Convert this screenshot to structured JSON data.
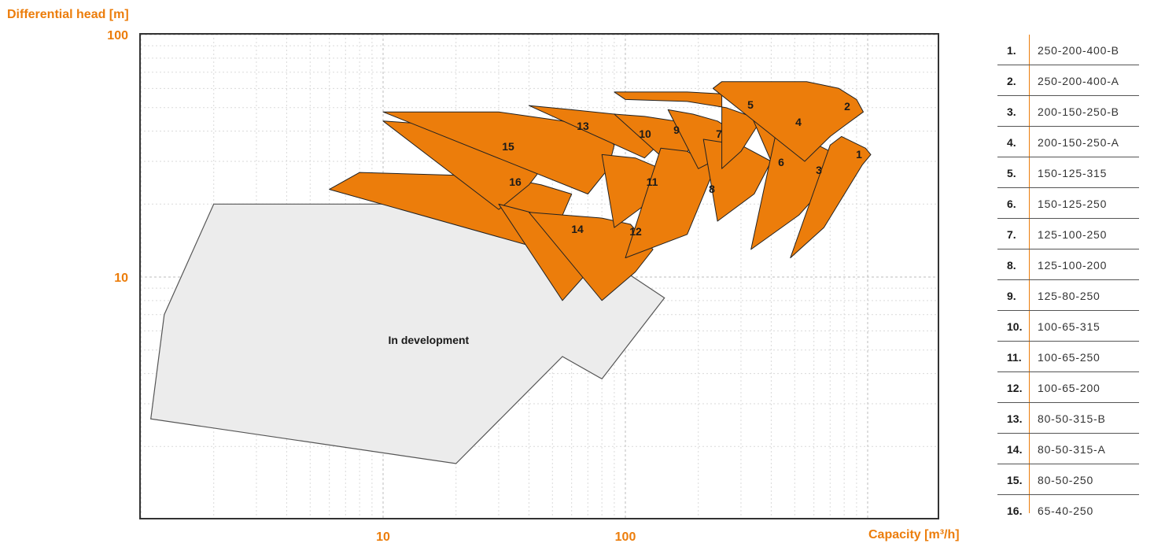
{
  "colors": {
    "accent": "#ec7d0b",
    "dev_fill": "#ececec"
  },
  "chart_data": {
    "type": "area",
    "xlabel": "Capacity [m³/h]",
    "ylabel": "Differential head [m]",
    "xscale": "log",
    "yscale": "log",
    "xlim": [
      1,
      1200
    ],
    "ylim": [
      1,
      100
    ],
    "xticks": [
      "10",
      "100"
    ],
    "yticks": [
      "100",
      "10"
    ],
    "grid": true,
    "development_region": {
      "label": "In development",
      "outline": [
        [
          1.25,
          7
        ],
        [
          2,
          20
        ],
        [
          30,
          20
        ],
        [
          55,
          10.5
        ],
        [
          100,
          10.5
        ],
        [
          145,
          8.2
        ],
        [
          80,
          3.8
        ],
        [
          55,
          4.7
        ],
        [
          20,
          1.7
        ],
        [
          1.1,
          2.6
        ]
      ]
    },
    "series": [
      {
        "name": "250-200-400-B",
        "label": "1",
        "outline": [
          [
            480,
            12
          ],
          [
            660,
            16
          ],
          [
            950,
            29
          ],
          [
            1030,
            32
          ],
          [
            980,
            34
          ],
          [
            780,
            38
          ],
          [
            700,
            35
          ]
        ]
      },
      {
        "name": "250-200-400-A",
        "label": "2",
        "outline": [
          [
            550,
            30
          ],
          [
            700,
            38
          ],
          [
            800,
            42
          ],
          [
            960,
            48
          ],
          [
            900,
            54
          ],
          [
            760,
            60
          ],
          [
            650,
            62
          ],
          [
            560,
            64
          ],
          [
            250,
            64
          ],
          [
            230,
            60
          ]
        ]
      },
      {
        "name": "200-150-250-B",
        "label": "3",
        "outline": [
          [
            330,
            13
          ],
          [
            520,
            18
          ],
          [
            700,
            25
          ],
          [
            780,
            30
          ],
          [
            700,
            33
          ],
          [
            590,
            36
          ],
          [
            500,
            38
          ],
          [
            420,
            40
          ]
        ]
      },
      {
        "name": "200-150-250-A",
        "label": "4",
        "outline": [
          [
            400,
            30
          ],
          [
            500,
            35
          ],
          [
            660,
            40
          ],
          [
            560,
            44
          ],
          [
            450,
            47
          ],
          [
            380,
            49
          ],
          [
            320,
            50
          ]
        ]
      },
      {
        "name": "150-125-315",
        "label": "5",
        "outline": [
          [
            250,
            28
          ],
          [
            300,
            33
          ],
          [
            350,
            42
          ],
          [
            330,
            46
          ],
          [
            260,
            50
          ],
          [
            180,
            53
          ],
          [
            100,
            54
          ],
          [
            90,
            58
          ],
          [
            180,
            58
          ],
          [
            250,
            57
          ]
        ]
      },
      {
        "name": "150-125-250",
        "label": "6",
        "outline": [
          [
            240,
            17
          ],
          [
            340,
            22
          ],
          [
            400,
            30
          ],
          [
            300,
            35
          ],
          [
            210,
            37
          ]
        ]
      },
      {
        "name": "125-100-250",
        "label": "7",
        "outline": [
          [
            200,
            28
          ],
          [
            260,
            32
          ],
          [
            280,
            40
          ],
          [
            240,
            44
          ],
          [
            190,
            47
          ],
          [
            150,
            49
          ]
        ]
      },
      {
        "name": "125-100-200",
        "label": "8",
        "outline": [
          [
            100,
            12
          ],
          [
            180,
            15
          ],
          [
            240,
            30
          ],
          [
            200,
            31
          ],
          [
            180,
            33
          ],
          [
            140,
            34
          ]
        ]
      },
      {
        "name": "125-80-250",
        "label": "9",
        "outline": [
          [
            160,
            28
          ],
          [
            180,
            32
          ],
          [
            190,
            40
          ],
          [
            160,
            44
          ],
          [
            120,
            46
          ],
          [
            90,
            47
          ]
        ]
      },
      {
        "name": "100-65-315",
        "label": "10",
        "outline": [
          [
            120,
            31
          ],
          [
            140,
            36
          ],
          [
            145,
            40
          ],
          [
            120,
            44
          ],
          [
            90,
            47
          ],
          [
            60,
            49
          ],
          [
            40,
            51
          ]
        ]
      },
      {
        "name": "100-65-250",
        "label": "11",
        "outline": [
          [
            90,
            16
          ],
          [
            130,
            21
          ],
          [
            140,
            28
          ],
          [
            110,
            31
          ],
          [
            80,
            32
          ]
        ]
      },
      {
        "name": "100-65-200",
        "label": "12",
        "outline": [
          [
            80,
            8
          ],
          [
            110,
            10.5
          ],
          [
            130,
            13
          ],
          [
            105,
            16.5
          ],
          [
            80,
            17.5
          ],
          [
            40,
            18.5
          ]
        ]
      },
      {
        "name": "80-50-315-B",
        "label": "13",
        "outline": [
          [
            70,
            22
          ],
          [
            85,
            28
          ],
          [
            90,
            35
          ],
          [
            80,
            40
          ],
          [
            55,
            44
          ],
          [
            30,
            48
          ],
          [
            10,
            48
          ]
        ]
      },
      {
        "name": "80-50-315-A",
        "label": "14",
        "outline": [
          [
            55,
            8
          ],
          [
            70,
            10.5
          ],
          [
            80,
            13.5
          ],
          [
            65,
            17
          ],
          [
            45,
            18
          ],
          [
            30,
            20
          ]
        ]
      },
      {
        "name": "80-50-250",
        "label": "15",
        "outline": [
          [
            30,
            19
          ],
          [
            40,
            24
          ],
          [
            50,
            32
          ],
          [
            38,
            37
          ],
          [
            20,
            42
          ],
          [
            10,
            44
          ]
        ]
      },
      {
        "name": "65-40-250",
        "label": "16",
        "outline": [
          [
            40,
            13.5
          ],
          [
            55,
            18
          ],
          [
            60,
            22
          ],
          [
            45,
            24
          ],
          [
            30,
            26
          ],
          [
            8,
            27
          ],
          [
            6,
            23
          ]
        ]
      }
    ]
  },
  "legend": {
    "items": [
      {
        "num": "1.",
        "name": "250-200-400-B"
      },
      {
        "num": "2.",
        "name": "250-200-400-A"
      },
      {
        "num": "3.",
        "name": "200-150-250-B"
      },
      {
        "num": "4.",
        "name": "200-150-250-A"
      },
      {
        "num": "5.",
        "name": "150-125-315"
      },
      {
        "num": "6.",
        "name": "150-125-250"
      },
      {
        "num": "7.",
        "name": "125-100-250"
      },
      {
        "num": "8.",
        "name": "125-100-200"
      },
      {
        "num": "9.",
        "name": "125-80-250"
      },
      {
        "num": "10.",
        "name": "100-65-315"
      },
      {
        "num": "11.",
        "name": "100-65-250"
      },
      {
        "num": "12.",
        "name": "100-65-200"
      },
      {
        "num": "13.",
        "name": "80-50-315-B"
      },
      {
        "num": "14.",
        "name": "80-50-315-A"
      },
      {
        "num": "15.",
        "name": "80-50-250"
      },
      {
        "num": "16.",
        "name": "65-40-250"
      }
    ]
  }
}
